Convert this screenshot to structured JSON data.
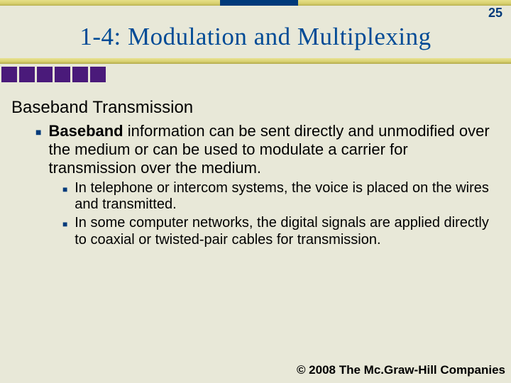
{
  "page_number": "25",
  "title": "1-4: Modulation and Multiplexing",
  "colors": {
    "title_color": "#004b96",
    "bullet_marker": "#003a7a",
    "square_color": "#4a1a7a",
    "bar_gradient_top": "#e8e290",
    "bar_gradient_bottom": "#b0a848",
    "background": "#e8e8d8"
  },
  "decorative_squares_count": 6,
  "section_heading": "Baseband Transmission",
  "bullets": {
    "l1": {
      "strong": "Baseband",
      "rest": " information can be sent directly and unmodified over the medium or can be used to modulate a carrier for transmission over the medium."
    },
    "l2a": "In telephone or intercom systems, the voice is placed on the wires and transmitted.",
    "l2b": "In some computer networks, the digital signals are applied directly to coaxial or twisted-pair cables for transmission."
  },
  "footer": "© 2008 The Mc.Graw-Hill Companies"
}
